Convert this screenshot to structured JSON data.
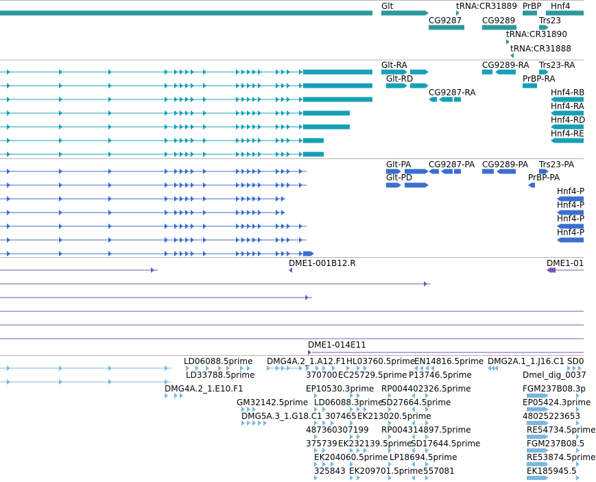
{
  "colors": {
    "gene": "#2c9a9a",
    "transcript": "#16a0b8",
    "protein": "#3a6fcf",
    "clone": "#7a55b0",
    "est": "#79b8e0",
    "separator": "#b4b4b4"
  },
  "tracks": {
    "genes": {
      "labels": [
        "Glt",
        "tRNA:CR31889",
        "PrBP",
        "Hnf4",
        "CG9287",
        "CG9289",
        "Trs23",
        "tRNA:CR31890",
        "tRNA:CR31888"
      ]
    },
    "transcripts": {
      "labels": [
        "Glt-RA",
        "Glt-RD",
        "CG9287-RA",
        "CG9289-RA",
        "Trs23-RA",
        "PrBP-RA",
        "Hnf4-RB",
        "Hnf4-RA",
        "Hnf4-RD",
        "Hnf4-RE"
      ]
    },
    "proteins": {
      "labels": [
        "Glt-PA",
        "Glt-PD",
        "CG9287-PA",
        "CG9289-PA",
        "Trs23-PA",
        "PrBP-PA",
        "Hnf4-P",
        "Hnf4-P",
        "Hnf4-P",
        "Hnf4-P"
      ]
    },
    "clones": {
      "labels": [
        "DME1-001B12.R",
        "DME1-01",
        "DME1-014E11"
      ]
    },
    "ests": {
      "labels": [
        "LD06088.5prime",
        "DMG4A.2_1.A12.F1",
        "HL03760.5prime",
        "EN14816.5prime",
        "DMG2A.1_1.J16.C1",
        "SD0",
        "LD33788.5prime",
        "370700",
        "EC25729.5prime",
        "P13746.5prime",
        "Dmel_dig_0037",
        "DMG4A.2_1.E10.F1",
        "EP10530.3prime",
        "RP004402326.5prime",
        "FGM237B08.3p",
        "GM32142.5prime",
        "LD06088.3prime",
        "SD27664.5prime",
        "EP05424.3prime",
        "DMG5A.3_1.G18.C1",
        "307465",
        "EK213020.5prime",
        "48025223653",
        "487360307199",
        "RP004314897.5prime",
        "RE54734.5prime",
        "375739",
        "EK232139.5prime",
        "SD17644.5prime",
        "FGM237B08.5",
        "EK204060.5prime",
        "LP18694.5prime",
        "RE53874.5prime",
        "325843",
        "EK209701.5prime",
        "557081",
        "EK185945.5"
      ]
    }
  }
}
